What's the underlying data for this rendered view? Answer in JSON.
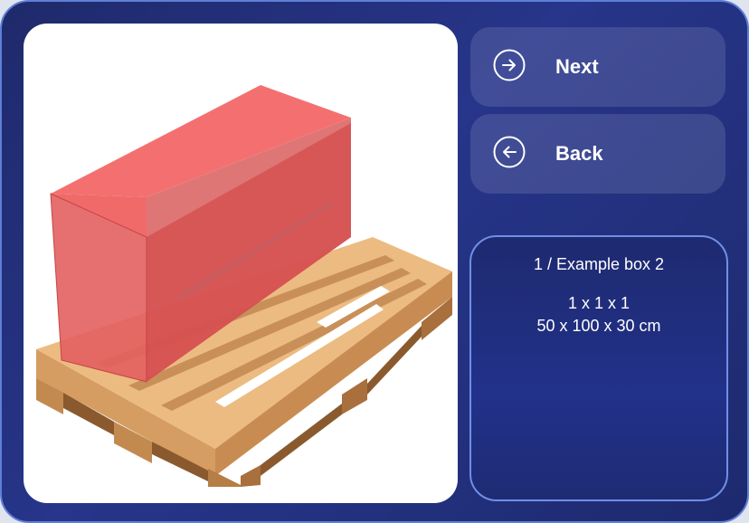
{
  "viewer": {
    "description_icon": "pallet-with-box-3d",
    "box_color": "#f25a5a",
    "pallet_color": "#e9b476"
  },
  "buttons": {
    "next_label": "Next",
    "next_icon": "arrow-right-circle-icon",
    "back_label": "Back",
    "back_icon": "arrow-left-circle-icon"
  },
  "info": {
    "title": "1 / Example box 2",
    "count": "1 x 1 x 1",
    "dimensions": "50 x 100 x 30 cm"
  },
  "colors": {
    "background": "#1f2a6b",
    "accent": "#5f7fd6"
  }
}
